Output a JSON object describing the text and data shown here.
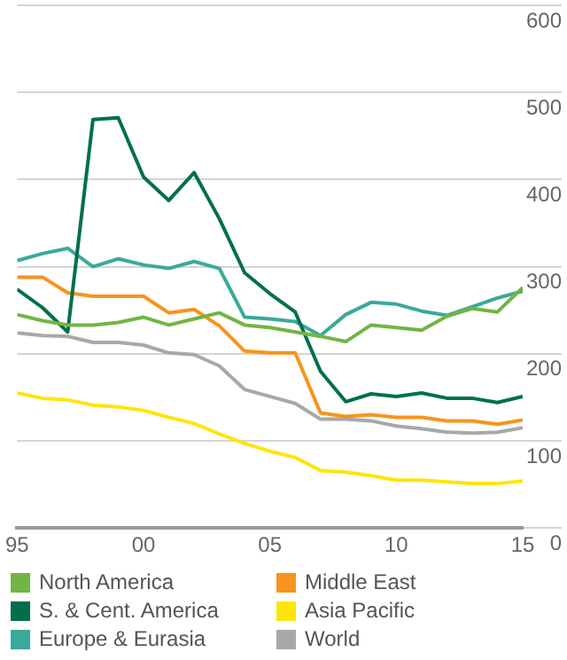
{
  "chart_data": {
    "type": "line",
    "x": [
      1995,
      1996,
      1997,
      1998,
      1999,
      2000,
      2001,
      2002,
      2003,
      2004,
      2005,
      2006,
      2007,
      2008,
      2009,
      2010,
      2011,
      2012,
      2013,
      2014,
      2015
    ],
    "xlim": [
      1995,
      2015
    ],
    "xticks": [
      {
        "value": 1995,
        "label": "95"
      },
      {
        "value": 2000,
        "label": "00"
      },
      {
        "value": 2005,
        "label": "05"
      },
      {
        "value": 2010,
        "label": "10"
      },
      {
        "value": 2015,
        "label": "15"
      }
    ],
    "ylim": [
      0,
      600
    ],
    "yticks": [
      0,
      100,
      200,
      300,
      400,
      500,
      600
    ],
    "grid": "y",
    "legend": "bottom",
    "marker": "none",
    "line_style": "solid",
    "series": [
      {
        "name": "North America",
        "color": "#72b544",
        "values": [
          245,
          238,
          233,
          233,
          236,
          242,
          233,
          240,
          247,
          233,
          230,
          225,
          220,
          214,
          233,
          230,
          227,
          243,
          252,
          248,
          276
        ]
      },
      {
        "name": "S. & Cent. America",
        "color": "#00704a",
        "values": [
          274,
          253,
          225,
          469,
          471,
          403,
          376,
          408,
          355,
          293,
          269,
          248,
          180,
          145,
          154,
          151,
          155,
          149,
          149,
          144,
          151
        ]
      },
      {
        "name": "Europe & Eurasia",
        "color": "#3aa99a",
        "values": [
          307,
          315,
          321,
          300,
          309,
          302,
          298,
          306,
          298,
          242,
          240,
          237,
          221,
          245,
          259,
          257,
          249,
          244,
          254,
          264,
          272
        ]
      },
      {
        "name": "Middle East",
        "color": "#f7941d",
        "values": [
          288,
          288,
          270,
          266,
          266,
          266,
          247,
          251,
          232,
          203,
          201,
          201,
          132,
          128,
          130,
          127,
          127,
          123,
          123,
          119,
          124
        ]
      },
      {
        "name": "Asia Pacific",
        "color": "#fde50c",
        "values": [
          155,
          149,
          147,
          141,
          139,
          135,
          127,
          120,
          108,
          97,
          88,
          81,
          66,
          64,
          60,
          55,
          55,
          53,
          51,
          51,
          54
        ]
      },
      {
        "name": "World",
        "color": "#a7a8aa",
        "values": [
          224,
          221,
          220,
          213,
          213,
          210,
          201,
          199,
          186,
          159,
          151,
          143,
          125,
          125,
          123,
          117,
          114,
          110,
          109,
          110,
          115
        ]
      }
    ]
  }
}
